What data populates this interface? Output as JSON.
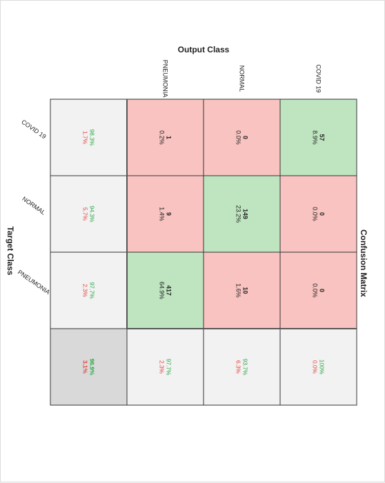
{
  "chart_data": {
    "type": "heatmap",
    "title": "Confusion Matrix",
    "xlabel": "Target Class",
    "ylabel": "Output Class",
    "classes": [
      "COVID 19",
      "NORMAL",
      "PNEUMONIA"
    ],
    "matrix": [
      {
        "count": "57",
        "percent": "8.9%"
      },
      {
        "count": "0",
        "percent": "0.0%"
      },
      {
        "count": "0",
        "percent": "0.0%"
      },
      {
        "count": "0",
        "percent": "0.0%"
      },
      {
        "count": "149",
        "percent": "23.2%"
      },
      {
        "count": "10",
        "percent": "1.6%"
      },
      {
        "count": "1",
        "percent": "0.2%"
      },
      {
        "count": "9",
        "percent": "1.4%"
      },
      {
        "count": "417",
        "percent": "64.9%"
      }
    ],
    "row_summary": [
      {
        "correct": "100%",
        "wrong": "0.0%"
      },
      {
        "correct": "93.7%",
        "wrong": "6.3%"
      },
      {
        "correct": "97.7%",
        "wrong": "2.3%"
      }
    ],
    "col_summary": [
      {
        "correct": "98.3%",
        "wrong": "1.7%"
      },
      {
        "correct": "94.3%",
        "wrong": "5.7%"
      },
      {
        "correct": "97.7%",
        "wrong": "2.3%"
      }
    ],
    "overall": {
      "correct": "96.9%",
      "wrong": "3.1%"
    },
    "colors": {
      "correct_cell": "#bfe5c0",
      "wrong_cell": "#f8c3c0",
      "summary_cell": "#f2f2f2",
      "overall_cell": "#d9d9d9",
      "correct_text": "#27a844",
      "wrong_text": "#e0463c",
      "grid": "#333333"
    }
  }
}
